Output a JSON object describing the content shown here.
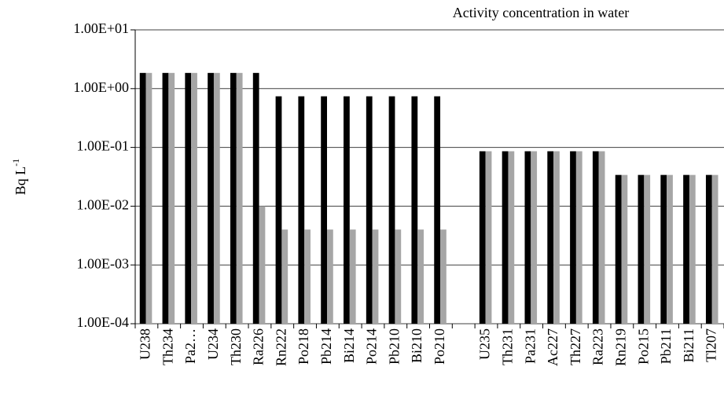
{
  "chart_data": {
    "type": "bar",
    "title": "Activity concentration in water",
    "y_label": {
      "text": "Bq L",
      "superscript": "-1"
    },
    "categories": [
      "U238",
      "Th234",
      "Pa2…",
      "U234",
      "Th230",
      "Ra226",
      "Rn222",
      "Po218",
      "Pb214",
      "Bi214",
      "Po214",
      "Pb210",
      "Bi210",
      "Po210",
      null,
      "U235",
      "Th231",
      "Pa231",
      "Ac227",
      "Th227",
      "Ra223",
      "Rn219",
      "Po215",
      "Pb211",
      "Bi211",
      "Tl207"
    ],
    "series": [
      {
        "color": "#000000",
        "values": [
          1.85,
          1.85,
          1.85,
          1.85,
          1.85,
          1.85,
          0.74,
          0.74,
          0.74,
          0.74,
          0.74,
          0.74,
          0.74,
          0.74,
          null,
          0.086,
          0.086,
          0.086,
          0.086,
          0.086,
          0.086,
          0.034,
          0.034,
          0.034,
          0.034,
          0.034
        ]
      },
      {
        "color": "#a6a6a6",
        "values": [
          1.85,
          1.85,
          1.85,
          1.85,
          1.85,
          0.01,
          0.004,
          0.004,
          0.004,
          0.004,
          0.004,
          0.004,
          0.004,
          0.004,
          null,
          0.086,
          0.086,
          0.086,
          0.086,
          0.086,
          0.086,
          0.034,
          0.034,
          0.034,
          0.034,
          0.034
        ]
      }
    ],
    "log_scale": true,
    "ylim": [
      0.0001,
      10
    ],
    "yticks": [
      {
        "value": 0.0001,
        "label": "1.00E-04"
      },
      {
        "value": 0.001,
        "label": "1.00E-03"
      },
      {
        "value": 0.01,
        "label": "1.00E-02"
      },
      {
        "value": 0.1,
        "label": "1.00E-01"
      },
      {
        "value": 1,
        "label": "1.00E+00"
      },
      {
        "value": 10,
        "label": "1.00E+01"
      }
    ],
    "grid": true
  }
}
